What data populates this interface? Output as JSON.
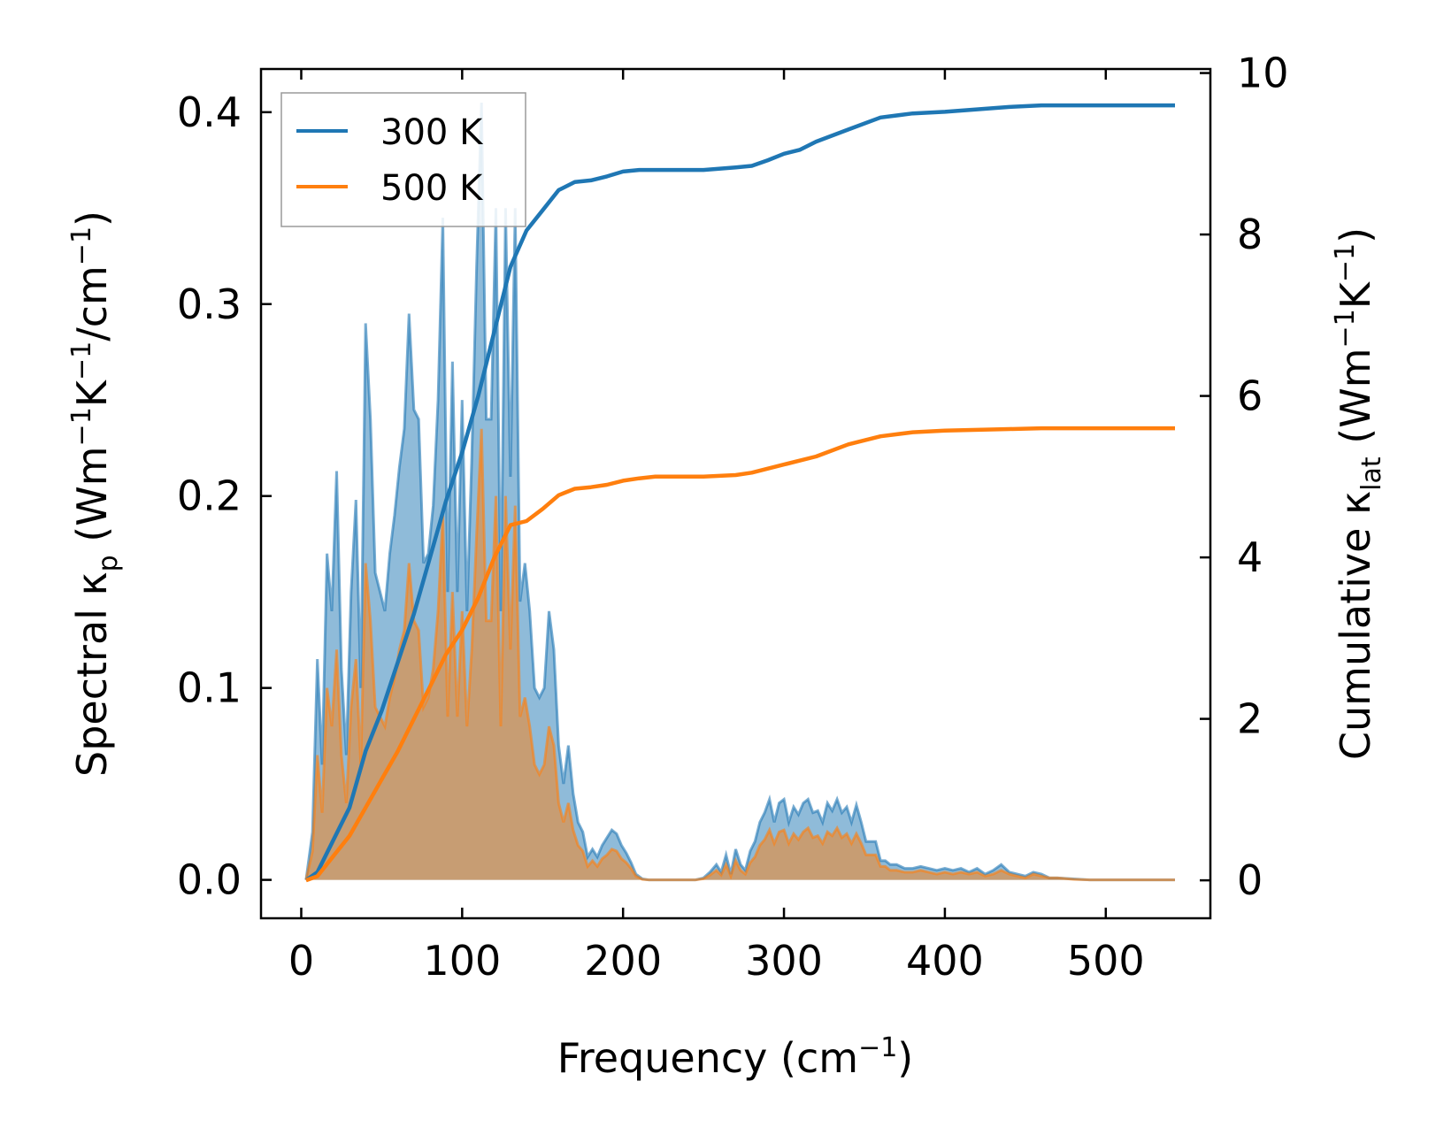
{
  "chart_data": {
    "type": "line",
    "title": "",
    "xlabel": "Frequency (cm⁻¹)",
    "ylabel_left": "Spectral κp (Wm⁻¹K⁻¹/cm⁻¹)",
    "ylabel_right": "Cumulative κlat (Wm⁻¹K⁻¹)",
    "xlim": [
      -25,
      565
    ],
    "ylim_left": [
      -0.02,
      0.4225
    ],
    "ylim_right": [
      -0.47,
      10.05
    ],
    "x_ticks": [
      0,
      100,
      200,
      300,
      400,
      500
    ],
    "x_tick_labels": [
      "0",
      "100",
      "200",
      "300",
      "400",
      "500"
    ],
    "y_left_ticks": [
      0.0,
      0.1,
      0.2,
      0.3,
      0.4
    ],
    "y_left_tick_labels": [
      "0.0",
      "0.1",
      "0.2",
      "0.3",
      "0.4"
    ],
    "y_right_ticks": [
      0,
      2,
      4,
      6,
      8,
      10
    ],
    "y_right_tick_labels": [
      "0",
      "2",
      "4",
      "6",
      "8",
      "10"
    ],
    "legend": {
      "position": "top-left",
      "entries": [
        "300 K",
        "500 K"
      ]
    },
    "series": [
      {
        "name": "300 K",
        "color": "#1f77b4",
        "spectral": {
          "x": [
            3,
            7,
            10,
            13,
            16,
            19,
            22,
            25,
            28,
            31,
            34,
            37,
            40,
            43,
            46,
            49,
            52,
            55,
            58,
            61,
            64,
            67,
            70,
            73,
            76,
            79,
            82,
            85,
            88,
            91,
            94,
            97,
            100,
            103,
            106,
            109,
            112,
            115,
            118,
            121,
            124,
            127,
            130,
            133,
            136,
            139,
            142,
            145,
            148,
            151,
            154,
            157,
            160,
            163,
            166,
            169,
            172,
            175,
            178,
            181,
            184,
            187,
            190,
            193,
            196,
            199,
            202,
            205,
            208,
            212,
            216,
            220,
            230,
            245,
            250,
            254,
            258,
            261,
            264,
            267,
            270,
            273,
            276,
            279,
            282,
            285,
            288,
            291,
            294,
            297,
            300,
            303,
            306,
            309,
            312,
            315,
            318,
            321,
            324,
            327,
            330,
            333,
            336,
            339,
            342,
            345,
            348,
            351,
            354,
            357,
            360,
            363,
            366,
            370,
            375,
            380,
            385,
            390,
            395,
            400,
            405,
            410,
            415,
            420,
            425,
            430,
            435,
            440,
            445,
            450,
            455,
            460,
            465,
            470,
            480,
            490,
            500,
            520,
            543
          ],
          "y": [
            0,
            0.025,
            0.115,
            0.06,
            0.17,
            0.14,
            0.213,
            0.11,
            0.065,
            0.15,
            0.198,
            0.1,
            0.29,
            0.24,
            0.16,
            0.15,
            0.14,
            0.17,
            0.19,
            0.215,
            0.235,
            0.295,
            0.245,
            0.24,
            0.165,
            0.17,
            0.195,
            0.25,
            0.345,
            0.15,
            0.27,
            0.15,
            0.25,
            0.14,
            0.22,
            0.32,
            0.405,
            0.24,
            0.24,
            0.35,
            0.14,
            0.35,
            0.21,
            0.35,
            0.145,
            0.165,
            0.14,
            0.1,
            0.095,
            0.1,
            0.14,
            0.12,
            0.07,
            0.05,
            0.07,
            0.045,
            0.03,
            0.025,
            0.012,
            0.016,
            0.012,
            0.018,
            0.022,
            0.026,
            0.024,
            0.018,
            0.014,
            0.009,
            0.003,
            0.0005,
            0,
            0,
            0,
            0,
            0.001,
            0.004,
            0.008,
            0.004,
            0.013,
            0.003,
            0.016,
            0.008,
            0.005,
            0.015,
            0.02,
            0.03,
            0.035,
            0.042,
            0.03,
            0.04,
            0.042,
            0.03,
            0.038,
            0.034,
            0.04,
            0.042,
            0.035,
            0.036,
            0.03,
            0.04,
            0.036,
            0.042,
            0.035,
            0.038,
            0.03,
            0.039,
            0.03,
            0.02,
            0.02,
            0.02,
            0.01,
            0.01,
            0.008,
            0.008,
            0.006,
            0.006,
            0.007,
            0.006,
            0.005,
            0.006,
            0.005,
            0.006,
            0.004,
            0.006,
            0.003,
            0.005,
            0.008,
            0.004,
            0.003,
            0.002,
            0.004,
            0.003,
            0.001,
            0.001,
            0.0005,
            0,
            0,
            0,
            0
          ]
        },
        "cumulative": {
          "x": [
            3,
            10,
            20,
            30,
            40,
            50,
            60,
            70,
            80,
            90,
            100,
            110,
            120,
            130,
            140,
            150,
            160,
            170,
            180,
            190,
            200,
            210,
            220,
            230,
            250,
            270,
            280,
            290,
            300,
            310,
            320,
            340,
            360,
            380,
            400,
            420,
            440,
            460,
            480,
            500,
            520,
            543
          ],
          "y": [
            0,
            0.1,
            0.5,
            0.9,
            1.6,
            2.1,
            2.7,
            3.3,
            4,
            4.7,
            5.3,
            6,
            6.8,
            7.6,
            8.05,
            8.3,
            8.55,
            8.65,
            8.67,
            8.72,
            8.78,
            8.8,
            8.8,
            8.8,
            8.8,
            8.83,
            8.85,
            8.92,
            9,
            9.05,
            9.15,
            9.3,
            9.45,
            9.5,
            9.52,
            9.55,
            9.58,
            9.6,
            9.6,
            9.6,
            9.6,
            9.6
          ]
        }
      },
      {
        "name": "500 K",
        "color": "#ff7f0e",
        "spectral": {
          "x": [
            3,
            7,
            10,
            13,
            16,
            19,
            22,
            25,
            28,
            31,
            34,
            37,
            40,
            43,
            46,
            49,
            52,
            55,
            58,
            61,
            64,
            67,
            70,
            73,
            76,
            79,
            82,
            85,
            88,
            91,
            94,
            97,
            100,
            103,
            106,
            109,
            112,
            115,
            118,
            121,
            124,
            127,
            130,
            133,
            136,
            139,
            142,
            145,
            148,
            151,
            154,
            157,
            160,
            163,
            166,
            169,
            172,
            175,
            178,
            181,
            184,
            187,
            190,
            193,
            196,
            199,
            202,
            205,
            208,
            212,
            216,
            220,
            230,
            245,
            250,
            254,
            258,
            261,
            264,
            267,
            270,
            273,
            276,
            279,
            282,
            285,
            288,
            291,
            294,
            297,
            300,
            303,
            306,
            309,
            312,
            315,
            318,
            321,
            324,
            327,
            330,
            333,
            336,
            339,
            342,
            345,
            348,
            351,
            354,
            357,
            360,
            363,
            366,
            370,
            375,
            380,
            385,
            390,
            395,
            400,
            405,
            410,
            415,
            420,
            425,
            430,
            435,
            440,
            445,
            450,
            455,
            460,
            465,
            470,
            480,
            490,
            500,
            520,
            543
          ],
          "y": [
            0,
            0.015,
            0.065,
            0.035,
            0.1,
            0.08,
            0.12,
            0.065,
            0.04,
            0.09,
            0.115,
            0.06,
            0.165,
            0.135,
            0.09,
            0.085,
            0.08,
            0.095,
            0.105,
            0.12,
            0.13,
            0.165,
            0.135,
            0.13,
            0.09,
            0.095,
            0.11,
            0.14,
            0.19,
            0.085,
            0.15,
            0.085,
            0.14,
            0.08,
            0.12,
            0.18,
            0.235,
            0.135,
            0.135,
            0.2,
            0.08,
            0.2,
            0.12,
            0.195,
            0.085,
            0.095,
            0.08,
            0.06,
            0.055,
            0.06,
            0.08,
            0.07,
            0.04,
            0.03,
            0.04,
            0.026,
            0.018,
            0.015,
            0.007,
            0.01,
            0.007,
            0.011,
            0.013,
            0.016,
            0.015,
            0.011,
            0.009,
            0.006,
            0.002,
            0.0003,
            0,
            0,
            0,
            0,
            0.0006,
            0.0025,
            0.005,
            0.0025,
            0.008,
            0.002,
            0.01,
            0.005,
            0.003,
            0.009,
            0.012,
            0.018,
            0.021,
            0.026,
            0.019,
            0.025,
            0.026,
            0.019,
            0.024,
            0.021,
            0.025,
            0.027,
            0.022,
            0.023,
            0.019,
            0.025,
            0.023,
            0.027,
            0.022,
            0.024,
            0.019,
            0.024,
            0.019,
            0.013,
            0.013,
            0.013,
            0.007,
            0.007,
            0.005,
            0.005,
            0.004,
            0.004,
            0.005,
            0.004,
            0.003,
            0.004,
            0.003,
            0.004,
            0.003,
            0.004,
            0.002,
            0.003,
            0.005,
            0.003,
            0.002,
            0.001,
            0.003,
            0.002,
            0.001,
            0.001,
            0.0003,
            0,
            0,
            0,
            0
          ]
        },
        "cumulative": {
          "x": [
            3,
            10,
            20,
            30,
            40,
            50,
            60,
            70,
            80,
            90,
            100,
            110,
            120,
            130,
            140,
            150,
            160,
            170,
            180,
            190,
            200,
            210,
            220,
            230,
            250,
            270,
            280,
            290,
            300,
            310,
            320,
            340,
            360,
            380,
            400,
            420,
            440,
            460,
            480,
            500,
            520,
            543
          ],
          "y": [
            0,
            0.05,
            0.3,
            0.55,
            0.9,
            1.25,
            1.6,
            2,
            2.4,
            2.8,
            3.1,
            3.5,
            4,
            4.4,
            4.45,
            4.6,
            4.77,
            4.85,
            4.87,
            4.9,
            4.95,
            4.98,
            5,
            5,
            5,
            5.02,
            5.05,
            5.1,
            5.15,
            5.2,
            5.25,
            5.4,
            5.5,
            5.55,
            5.57,
            5.58,
            5.59,
            5.6,
            5.6,
            5.6,
            5.6,
            5.6
          ]
        }
      }
    ]
  }
}
